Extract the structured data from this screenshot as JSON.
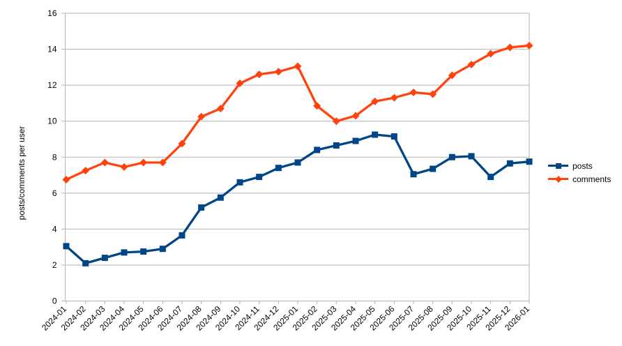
{
  "chart_data": {
    "type": "line",
    "title": "",
    "xlabel": "",
    "ylabel": "posts/comments per user",
    "ylim": [
      0,
      16
    ],
    "y_tick_step": 2,
    "grid": "horizontal",
    "legend_position": "right",
    "categories": [
      "2024-01",
      "2024-02",
      "2024-03",
      "2024-04",
      "2024-05",
      "2024-06",
      "2024-07",
      "2024-08",
      "2024-09",
      "2024-10",
      "2024-11",
      "2024-12",
      "2025-01",
      "2025-02",
      "2025-03",
      "2025-04",
      "2025-05",
      "2025-06",
      "2025-07",
      "2025-08",
      "2025-09",
      "2025-10",
      "2025-11",
      "2025-12",
      "2026-01"
    ],
    "series": [
      {
        "name": "posts",
        "marker": "square",
        "color": "#004586",
        "values": [
          3.05,
          2.1,
          2.4,
          2.7,
          2.75,
          2.9,
          3.65,
          5.2,
          5.75,
          6.6,
          6.9,
          7.4,
          7.7,
          8.4,
          8.65,
          8.9,
          9.25,
          9.15,
          7.05,
          7.35,
          8.0,
          8.05,
          6.9,
          7.65,
          7.75
        ]
      },
      {
        "name": "comments",
        "marker": "diamond",
        "color": "#FF420E",
        "values": [
          6.75,
          7.25,
          7.7,
          7.45,
          7.7,
          7.7,
          8.75,
          10.25,
          10.7,
          12.1,
          12.6,
          12.75,
          13.05,
          10.85,
          10.0,
          10.3,
          11.1,
          11.3,
          11.6,
          11.5,
          12.55,
          13.15,
          13.75,
          14.1,
          14.2
        ]
      }
    ]
  },
  "colors": {
    "grid": "#b3b3b3",
    "axis": "#b3b3b3",
    "text": "#000000",
    "background": "#ffffff"
  }
}
